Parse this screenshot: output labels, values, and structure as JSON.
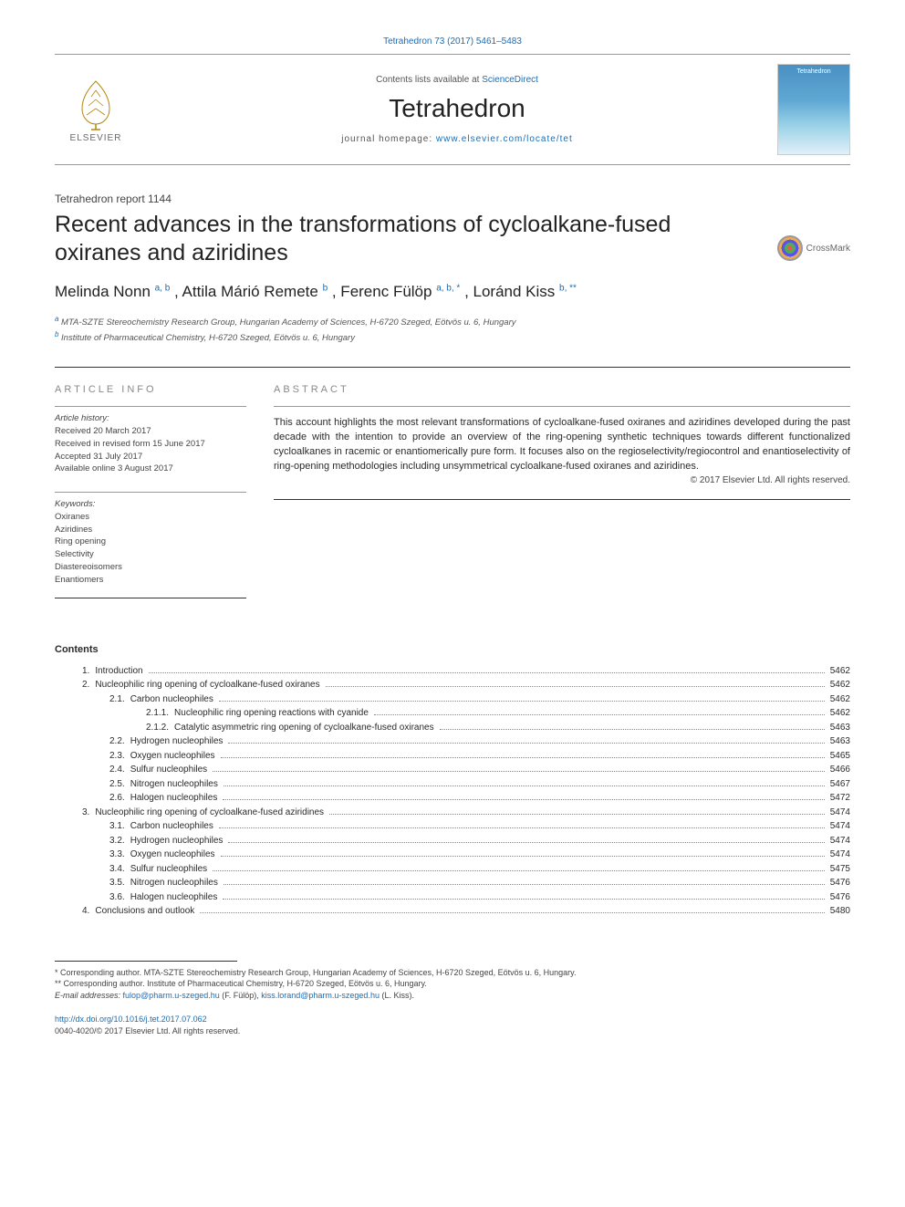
{
  "journal": {
    "top_link": "Tetrahedron 73 (2017) 5461–5483",
    "contents_line_prefix": "Contents lists available at ",
    "contents_line_link": "ScienceDirect",
    "name": "Tetrahedron",
    "homepage_prefix": "journal homepage: ",
    "homepage_url": "www.elsevier.com/locate/tet",
    "publisher_name": "ELSEVIER",
    "cover_label": "Tetrahedron"
  },
  "article": {
    "report_number": "Tetrahedron report 1144",
    "title": "Recent advances in the transformations of cycloalkane-fused oxiranes and aziridines",
    "crossmark_label": "CrossMark",
    "authors_html": {
      "a1_name": "Melinda Nonn ",
      "a1_sup": "a, b",
      "a2_name": ", Attila Márió Remete ",
      "a2_sup": "b",
      "a3_name": ", Ferenc Fülöp ",
      "a3_sup": "a, b, *",
      "a4_name": ", Loránd Kiss ",
      "a4_sup": "b, **"
    },
    "affiliations": {
      "aff_a_sup": "a",
      "aff_a": " MTA-SZTE Stereochemistry Research Group, Hungarian Academy of Sciences, H-6720 Szeged, Eötvös u. 6, Hungary",
      "aff_b_sup": "b",
      "aff_b": " Institute of Pharmaceutical Chemistry, H-6720 Szeged, Eötvös u. 6, Hungary"
    }
  },
  "info": {
    "heading": "article info",
    "history_title": "Article history:",
    "received": "Received 20 March 2017",
    "revised": "Received in revised form 15 June 2017",
    "accepted": "Accepted 31 July 2017",
    "online": "Available online 3 August 2017",
    "keywords_title": "Keywords:",
    "keywords": [
      "Oxiranes",
      "Aziridines",
      "Ring opening",
      "Selectivity",
      "Diastereoisomers",
      "Enantiomers"
    ]
  },
  "abstract": {
    "heading": "abstract",
    "text": "This account highlights the most relevant transformations of cycloalkane-fused oxiranes and aziridines developed during the past decade with the intention to provide an overview of the ring-opening synthetic techniques towards different functionalized cycloalkanes in racemic or enantiomerically pure form. It focuses also on the regioselectivity/regiocontrol and enantioselectivity of ring-opening methodologies including unsymmetrical cycloalkane-fused oxiranes and aziridines.",
    "copyright": "© 2017 Elsevier Ltd. All rights reserved."
  },
  "toc": {
    "heading": "Contents",
    "items": [
      {
        "indent": 0,
        "num": "1.",
        "title": "Introduction",
        "page": "5462"
      },
      {
        "indent": 0,
        "num": "2.",
        "title": "Nucleophilic ring opening of cycloalkane-fused oxiranes",
        "page": "5462"
      },
      {
        "indent": 1,
        "num": "2.1.",
        "title": "Carbon nucleophiles",
        "page": "5462"
      },
      {
        "indent": 2,
        "num": "2.1.1.",
        "title": "Nucleophilic ring opening reactions with cyanide",
        "page": "5462"
      },
      {
        "indent": 2,
        "num": "2.1.2.",
        "title": "Catalytic asymmetric ring opening of cycloalkane-fused oxiranes",
        "page": "5463"
      },
      {
        "indent": 1,
        "num": "2.2.",
        "title": "Hydrogen nucleophiles",
        "page": "5463"
      },
      {
        "indent": 1,
        "num": "2.3.",
        "title": "Oxygen nucleophiles",
        "page": "5465"
      },
      {
        "indent": 1,
        "num": "2.4.",
        "title": "Sulfur nucleophiles",
        "page": "5466"
      },
      {
        "indent": 1,
        "num": "2.5.",
        "title": "Nitrogen nucleophiles",
        "page": "5467"
      },
      {
        "indent": 1,
        "num": "2.6.",
        "title": "Halogen nucleophiles",
        "page": "5472"
      },
      {
        "indent": 0,
        "num": "3.",
        "title": "Nucleophilic ring opening of cycloalkane-fused aziridines",
        "page": "5474"
      },
      {
        "indent": 1,
        "num": "3.1.",
        "title": "Carbon nucleophiles",
        "page": "5474"
      },
      {
        "indent": 1,
        "num": "3.2.",
        "title": "Hydrogen nucleophiles",
        "page": "5474"
      },
      {
        "indent": 1,
        "num": "3.3.",
        "title": "Oxygen nucleophiles",
        "page": "5474"
      },
      {
        "indent": 1,
        "num": "3.4.",
        "title": "Sulfur nucleophiles",
        "page": "5475"
      },
      {
        "indent": 1,
        "num": "3.5.",
        "title": "Nitrogen nucleophiles",
        "page": "5476"
      },
      {
        "indent": 1,
        "num": "3.6.",
        "title": "Halogen nucleophiles",
        "page": "5476"
      },
      {
        "indent": 0,
        "num": "4.",
        "title": "Conclusions and outlook",
        "page": "5480"
      }
    ]
  },
  "footnotes": {
    "n1_marker": "*",
    "n1": " Corresponding author. MTA-SZTE Stereochemistry Research Group, Hungarian Academy of Sciences, H-6720 Szeged, Eötvös u. 6, Hungary.",
    "n2_marker": "**",
    "n2": " Corresponding author. Institute of Pharmaceutical Chemistry, H-6720 Szeged, Eötvös u. 6, Hungary.",
    "email_label": "E-mail addresses: ",
    "email1": "fulop@pharm.u-szeged.hu",
    "email1_name": " (F. Fülöp), ",
    "email2": "kiss.lorand@pharm.u-szeged.hu",
    "email2_name": " (L. Kiss)."
  },
  "doi": {
    "url": "http://dx.doi.org/10.1016/j.tet.2017.07.062",
    "issn_line": "0040-4020/© 2017 Elsevier Ltd. All rights reserved."
  },
  "colors": {
    "link": "#1a6db5",
    "text": "#2a2a2a",
    "muted": "#555",
    "border": "#999"
  }
}
